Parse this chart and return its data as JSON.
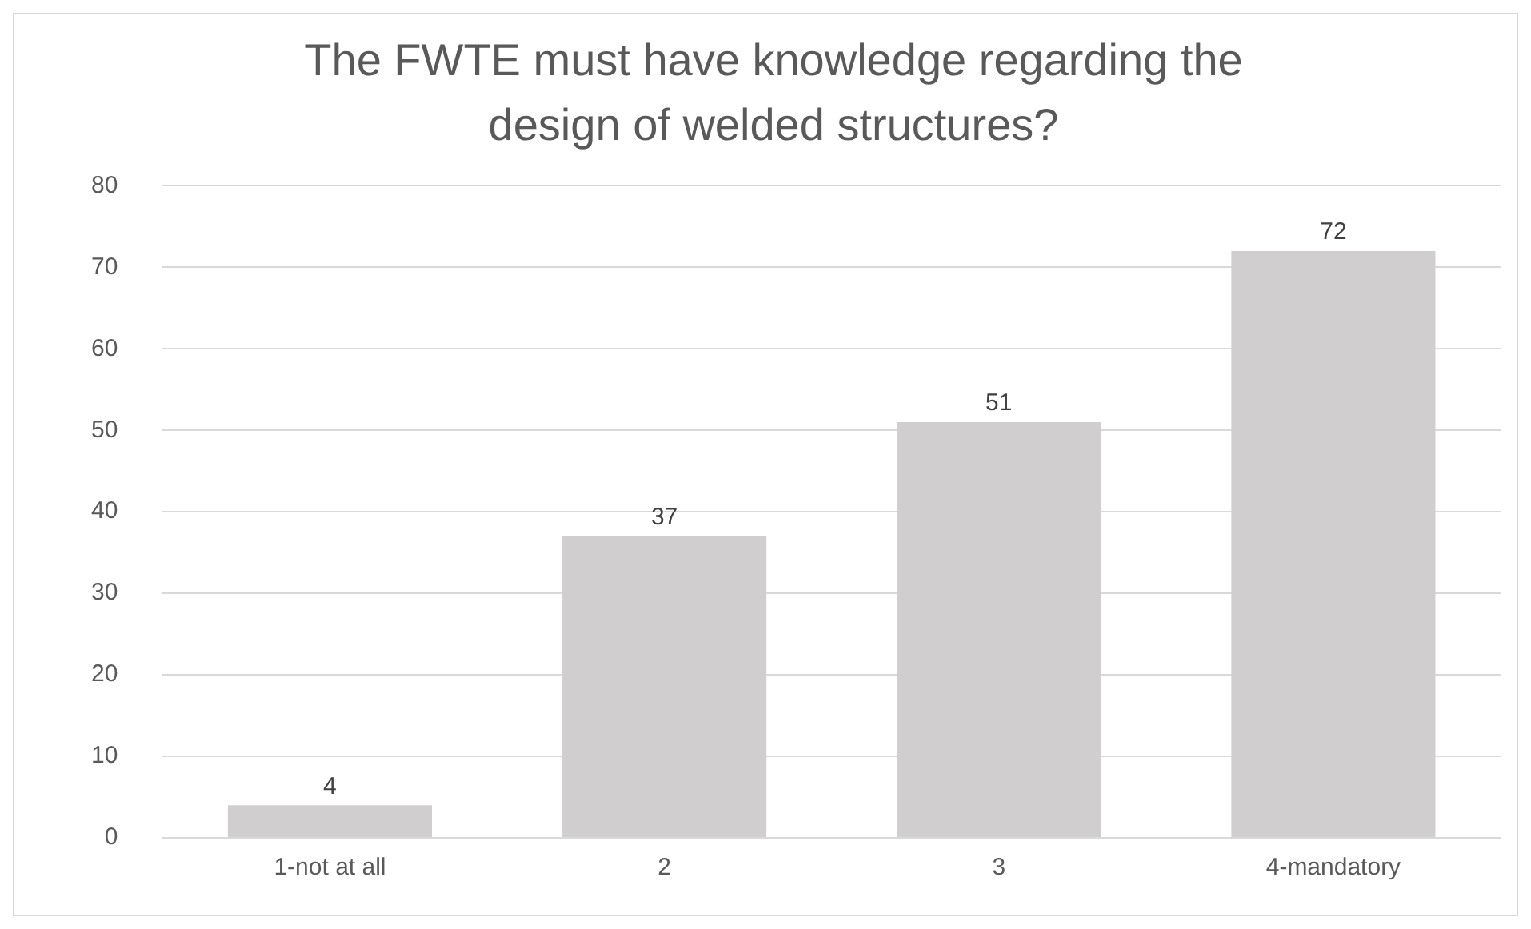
{
  "chart_data": {
    "type": "bar",
    "title": "The FWTE must have knowledge regarding the design of welded structures?",
    "categories": [
      "1-not at all",
      "2",
      "3",
      "4-mandatory"
    ],
    "values": [
      4,
      37,
      51,
      72
    ],
    "color": "#d0cece",
    "ylim": [
      0,
      80
    ],
    "yticks": [
      0,
      10,
      20,
      30,
      40,
      50,
      60,
      70,
      80
    ],
    "grid": "y",
    "data_labels": true,
    "legend": false
  }
}
